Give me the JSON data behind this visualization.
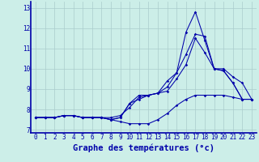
{
  "xlabel": "Graphe des températures (°c)",
  "background_color": "#cceee8",
  "line_color": "#0000aa",
  "grid_color": "#aacccc",
  "axis_bar_color": "#0000aa",
  "xlim": [
    -0.5,
    23.5
  ],
  "ylim": [
    6.85,
    13.3
  ],
  "xticks": [
    0,
    1,
    2,
    3,
    4,
    5,
    6,
    7,
    8,
    9,
    10,
    11,
    12,
    13,
    14,
    15,
    16,
    17,
    18,
    19,
    20,
    21,
    22,
    23
  ],
  "yticks": [
    7,
    8,
    9,
    10,
    11,
    12,
    13
  ],
  "series": [
    [
      7.6,
      7.6,
      7.6,
      7.7,
      7.7,
      7.6,
      7.6,
      7.6,
      7.5,
      7.4,
      7.3,
      7.3,
      7.3,
      7.5,
      7.8,
      8.2,
      8.5,
      8.7,
      8.7,
      8.7,
      8.7,
      8.6,
      8.5,
      8.5
    ],
    [
      7.6,
      7.6,
      7.6,
      7.7,
      7.7,
      7.6,
      7.6,
      7.6,
      7.6,
      7.7,
      8.1,
      8.6,
      8.7,
      8.8,
      9.1,
      9.8,
      10.7,
      11.7,
      11.6,
      10.0,
      9.9,
      9.3,
      8.5,
      8.5
    ],
    [
      7.6,
      7.6,
      7.6,
      7.7,
      7.7,
      7.6,
      7.6,
      7.6,
      7.5,
      7.6,
      8.3,
      8.7,
      8.7,
      8.8,
      9.4,
      9.8,
      11.8,
      12.8,
      11.4,
      10.0,
      9.9,
      9.3,
      8.5,
      8.5
    ],
    [
      7.6,
      7.6,
      7.6,
      7.7,
      7.7,
      7.6,
      7.6,
      7.6,
      7.5,
      7.6,
      8.3,
      8.5,
      8.7,
      8.8,
      8.9,
      9.5,
      10.2,
      11.5,
      10.8,
      10.0,
      10.0,
      9.6,
      9.3,
      8.5
    ]
  ],
  "tick_fontsize": 5.5,
  "xlabel_fontsize": 7.5
}
